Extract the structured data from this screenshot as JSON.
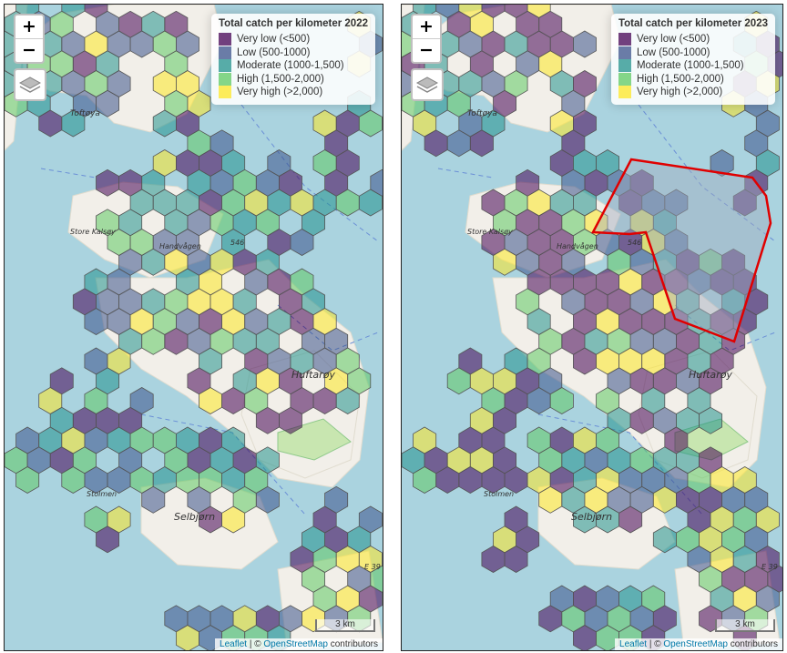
{
  "maps": [
    {
      "legend": {
        "title": "Total catch per kilometer 2022",
        "items": [
          {
            "label": "Very low (<500)",
            "color": "#440154"
          },
          {
            "label": "Low (500-1000)",
            "color": "#3b528b"
          },
          {
            "label": "Moderate (1000-1,500)",
            "color": "#21918c"
          },
          {
            "label": "High (1,500-2,000)",
            "color": "#5ec962"
          },
          {
            "label": "Very high (>2,000)",
            "color": "#fde725"
          }
        ]
      },
      "place_labels": [
        "Toftøya",
        "Store Kalsøy",
        "Handvågen",
        "546",
        "Huftarøy",
        "Stolmen",
        "Selbjørn",
        "E 39"
      ],
      "scale_label": "3 km",
      "highlight_polygon": false
    },
    {
      "legend": {
        "title": "Total catch per kilometer 2023",
        "items": [
          {
            "label": "Very low (<500)",
            "color": "#440154"
          },
          {
            "label": "Low (500-1000)",
            "color": "#3b528b"
          },
          {
            "label": "Moderate (1000-1,500)",
            "color": "#21918c"
          },
          {
            "label": "High (1,500-2,000)",
            "color": "#5ec962"
          },
          {
            "label": "Very high (>2,000)",
            "color": "#fde725"
          }
        ]
      },
      "place_labels": [
        "Toftøya",
        "Store Kalsøy",
        "Handvågen",
        "546",
        "Huftarøy",
        "Stolmen",
        "Selbjørn",
        "E 39"
      ],
      "scale_label": "3 km",
      "highlight_polygon": true
    }
  ],
  "controls": {
    "zoom_in": "+",
    "zoom_out": "−"
  },
  "attribution": {
    "leaflet": "Leaflet",
    "sep": " | © ",
    "osm": "OpenStreetMap",
    "suffix": " contributors"
  }
}
